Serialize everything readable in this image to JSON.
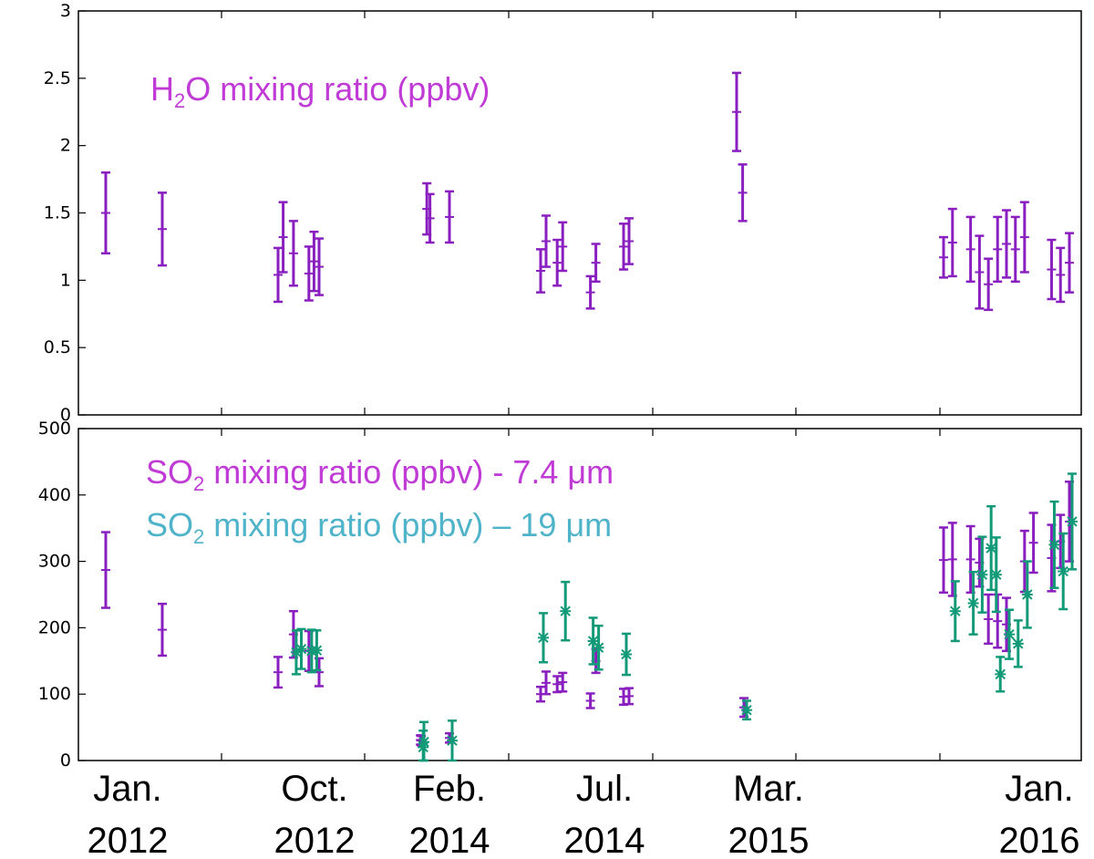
{
  "chart_data": [
    {
      "type": "scatter",
      "title_parts": {
        "prefix": "H",
        "subscript": "2",
        "suffix": "O  mixing ratio (ppbv)"
      },
      "ylim": [
        0,
        3
      ],
      "yticks": [
        {
          "v": 0,
          "label": "0"
        },
        {
          "v": 0.5,
          "label": "0.5"
        },
        {
          "v": 1,
          "label": "1"
        },
        {
          "v": 1.5,
          "label": "1.5"
        },
        {
          "v": 2,
          "label": "2"
        },
        {
          "v": 2.5,
          "label": "2.5"
        },
        {
          "v": 3,
          "label": "3"
        }
      ],
      "color": "#8a1fc0",
      "series": [
        {
          "points": [
            {
              "x": "2012-01",
              "y": 1.5,
              "err": 0.3
            },
            {
              "x": "2012-05",
              "y": 1.38,
              "err": 0.27
            },
            {
              "x": "2012-09a",
              "y": 1.04,
              "err": 0.2
            },
            {
              "x": "2012-09b",
              "y": 1.32,
              "err": 0.26
            },
            {
              "x": "2012-10a",
              "y": 1.2,
              "err": 0.24
            },
            {
              "x": "2012-11a",
              "y": 1.05,
              "err": 0.2
            },
            {
              "x": "2012-11b",
              "y": 1.14,
              "err": 0.22
            },
            {
              "x": "2012-11c",
              "y": 1.1,
              "err": 0.21
            },
            {
              "x": "2013-10a",
              "y": 1.53,
              "err": 0.19
            },
            {
              "x": "2013-10b",
              "y": 1.46,
              "err": 0.18
            },
            {
              "x": "2013-12",
              "y": 1.47,
              "err": 0.19
            },
            {
              "x": "2014-05a",
              "y": 1.07,
              "err": 0.16
            },
            {
              "x": "2014-05b",
              "y": 1.29,
              "err": 0.19
            },
            {
              "x": "2014-06a",
              "y": 1.13,
              "err": 0.17
            },
            {
              "x": "2014-06b",
              "y": 1.25,
              "err": 0.18
            },
            {
              "x": "2014-08a",
              "y": 0.91,
              "err": 0.12
            },
            {
              "x": "2014-08b",
              "y": 1.13,
              "err": 0.14
            },
            {
              "x": "2014-10a",
              "y": 1.25,
              "err": 0.17
            },
            {
              "x": "2014-10b",
              "y": 1.29,
              "err": 0.17
            },
            {
              "x": "2015-02a",
              "y": 2.25,
              "err": 0.29
            },
            {
              "x": "2015-02b",
              "y": 1.65,
              "err": 0.21
            },
            {
              "x": "2015-11a",
              "y": 1.17,
              "err": 0.15
            },
            {
              "x": "2015-11b",
              "y": 1.28,
              "err": 0.25
            },
            {
              "x": "2015-12a",
              "y": 1.23,
              "err": 0.24
            },
            {
              "x": "2015-12b",
              "y": 1.06,
              "err": 0.27
            },
            {
              "x": "2015-12c",
              "y": 0.97,
              "err": 0.19
            },
            {
              "x": "2016-01a",
              "y": 1.23,
              "err": 0.24
            },
            {
              "x": "2016-01b",
              "y": 1.27,
              "err": 0.25
            },
            {
              "x": "2016-01c",
              "y": 1.23,
              "err": 0.24
            },
            {
              "x": "2016-02a",
              "y": 1.32,
              "err": 0.26
            },
            {
              "x": "2016-03a",
              "y": 1.08,
              "err": 0.22
            },
            {
              "x": "2016-03b",
              "y": 1.04,
              "err": 0.2
            },
            {
              "x": "2016-03c",
              "y": 1.13,
              "err": 0.22
            }
          ]
        }
      ]
    },
    {
      "type": "scatter",
      "title_lines": [
        {
          "prefix": "SO",
          "subscript": "2",
          "suffix": " mixing ratio (ppbv) - 7.4 μm",
          "color": "#c03bd6"
        },
        {
          "prefix": "SO",
          "subscript": "2",
          "suffix": " mixing ratio (ppbv) – 19 μm",
          "color": "#4fb3c9"
        }
      ],
      "ylim": [
        0,
        500
      ],
      "yticks": [
        {
          "v": 0,
          "label": "0"
        },
        {
          "v": 100,
          "label": "100"
        },
        {
          "v": 200,
          "label": "200"
        },
        {
          "v": 300,
          "label": "300"
        },
        {
          "v": 400,
          "label": "400"
        },
        {
          "v": 500,
          "label": "500"
        }
      ],
      "series": [
        {
          "color": "#8a1fc0",
          "marker": "plus",
          "points": [
            {
              "x": "2012-01",
              "y": 287,
              "err": 57
            },
            {
              "x": "2012-05",
              "y": 197,
              "err": 39
            },
            {
              "x": "2012-09a",
              "y": 133,
              "err": 23
            },
            {
              "x": "2012-10a",
              "y": 190,
              "err": 35
            },
            {
              "x": "2012-11a",
              "y": 165,
              "err": 30
            },
            {
              "x": "2012-11c",
              "y": 133,
              "err": 21
            },
            {
              "x": "2013-09",
              "y": 30,
              "err": 7
            },
            {
              "x": "2013-09b",
              "y": 31,
              "err": 7
            },
            {
              "x": "2013-12",
              "y": 34,
              "err": 7
            },
            {
              "x": "2014-05a",
              "y": 100,
              "err": 11
            },
            {
              "x": "2014-05b",
              "y": 117,
              "err": 17
            },
            {
              "x": "2014-06a",
              "y": 115,
              "err": 12
            },
            {
              "x": "2014-06b",
              "y": 118,
              "err": 14
            },
            {
              "x": "2014-08a",
              "y": 90,
              "err": 11
            },
            {
              "x": "2014-08b",
              "y": 150,
              "err": 18
            },
            {
              "x": "2014-10a",
              "y": 96,
              "err": 12
            },
            {
              "x": "2014-10b",
              "y": 97,
              "err": 12
            },
            {
              "x": "2015-02",
              "y": 80,
              "err": 14
            },
            {
              "x": "2015-11a",
              "y": 302,
              "err": 49
            },
            {
              "x": "2015-11b",
              "y": 303,
              "err": 55
            },
            {
              "x": "2015-12a",
              "y": 303,
              "err": 50
            },
            {
              "x": "2015-12b",
              "y": 298,
              "err": 36
            },
            {
              "x": "2015-12c",
              "y": 213,
              "err": 37
            },
            {
              "x": "2016-01a",
              "y": 210,
              "err": 40
            },
            {
              "x": "2016-01b",
              "y": 205,
              "err": 40
            },
            {
              "x": "2016-02a",
              "y": 300,
              "err": 46
            },
            {
              "x": "2016-02b",
              "y": 328,
              "err": 45
            },
            {
              "x": "2016-03a",
              "y": 305,
              "err": 50
            },
            {
              "x": "2016-03b",
              "y": 330,
              "err": 40
            },
            {
              "x": "2016-03c",
              "y": 360,
              "err": 60
            }
          ]
        },
        {
          "color": "#129a78",
          "marker": "star",
          "points": [
            {
              "x": "2012-10a",
              "y": 163,
              "err": 33
            },
            {
              "x": "2012-10b",
              "y": 168,
              "err": 30
            },
            {
              "x": "2012-11a",
              "y": 165,
              "err": 32
            },
            {
              "x": "2012-11b",
              "y": 166,
              "err": 30
            },
            {
              "x": "2013-09",
              "y": 28,
              "err": 30
            },
            {
              "x": "2013-09b",
              "y": 20,
              "err": 25
            },
            {
              "x": "2013-12",
              "y": 30,
              "err": 30
            },
            {
              "x": "2014-05a",
              "y": 185,
              "err": 37
            },
            {
              "x": "2014-06b",
              "y": 225,
              "err": 44
            },
            {
              "x": "2014-08a",
              "y": 180,
              "err": 35
            },
            {
              "x": "2014-08b",
              "y": 170,
              "err": 33
            },
            {
              "x": "2014-10a",
              "y": 160,
              "err": 31
            },
            {
              "x": "2015-02",
              "y": 76,
              "err": 14
            },
            {
              "x": "2015-11b",
              "y": 225,
              "err": 45
            },
            {
              "x": "2015-12a",
              "y": 237,
              "err": 47
            },
            {
              "x": "2015-12b",
              "y": 280,
              "err": 57
            },
            {
              "x": "2015-12c",
              "y": 320,
              "err": 63
            },
            {
              "x": "2015-12d",
              "y": 280,
              "err": 56
            },
            {
              "x": "2016-01a",
              "y": 130,
              "err": 26
            },
            {
              "x": "2016-01b",
              "y": 190,
              "err": 37
            },
            {
              "x": "2016-01c",
              "y": 176,
              "err": 35
            },
            {
              "x": "2016-02a",
              "y": 250,
              "err": 50
            },
            {
              "x": "2016-03a",
              "y": 325,
              "err": 65
            },
            {
              "x": "2016-03b",
              "y": 285,
              "err": 57
            },
            {
              "x": "2016-03c",
              "y": 360,
              "err": 72
            }
          ]
        }
      ]
    }
  ],
  "x_axis": {
    "labels": [
      {
        "key": "2012-01",
        "month": "Jan.",
        "year": "2012"
      },
      {
        "key": "2012-10",
        "month": "Oct.",
        "year": "2012"
      },
      {
        "key": "2014-02",
        "month": "Feb.",
        "year": "2014"
      },
      {
        "key": "2014-07",
        "month": "Jul.",
        "year": "2014"
      },
      {
        "key": "2015-03",
        "month": "Mar.",
        "year": "2015"
      },
      {
        "key": "2016-01",
        "month": "Jan.",
        "year": "2016"
      }
    ]
  }
}
